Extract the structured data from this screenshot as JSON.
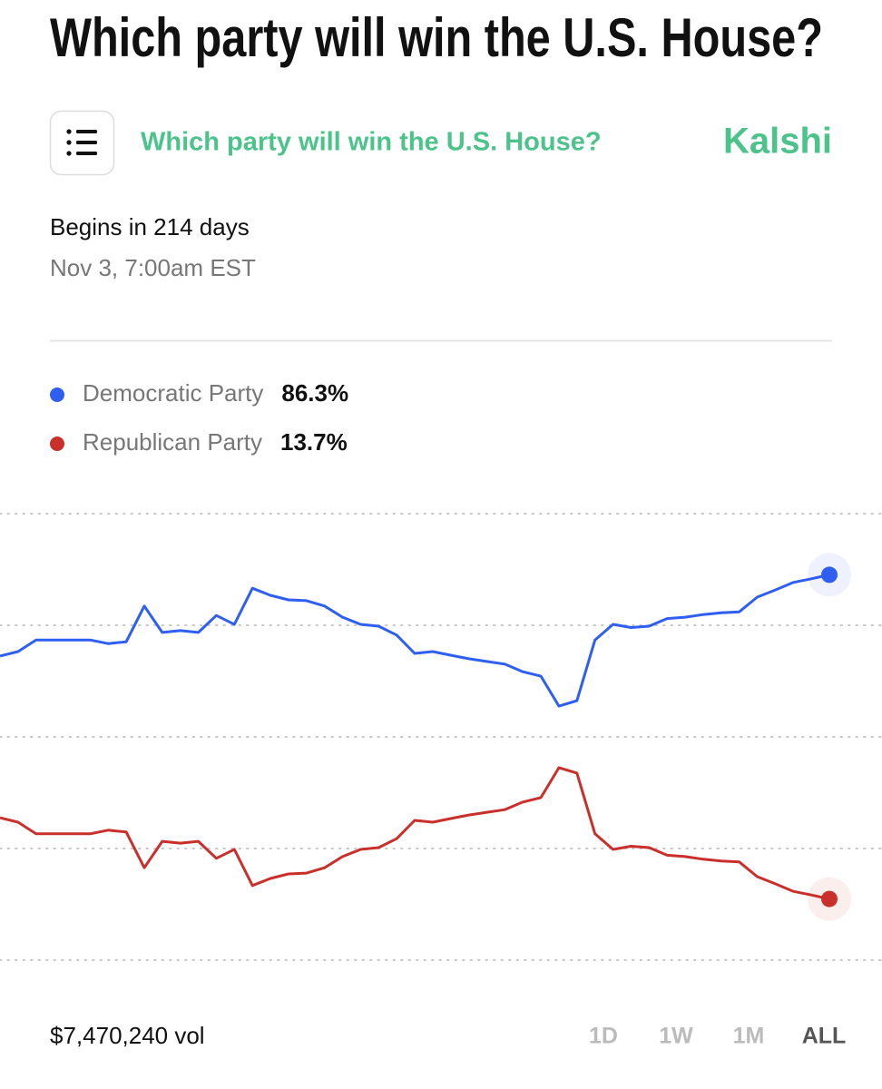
{
  "page": {
    "title": "Which party will win the U.S. House?",
    "market_title": "Which party will win the U.S. House?",
    "brand": "Kalshi",
    "begins": "Begins in 214 days",
    "date": "Nov 3, 7:00am EST",
    "volume": "$7,470,240 vol",
    "ranges": [
      "1D",
      "1W",
      "1M",
      "ALL"
    ],
    "selected_range": "ALL"
  },
  "chart_data": {
    "type": "line",
    "ylim": [
      0,
      100
    ],
    "yticks": [
      0,
      25,
      50,
      75,
      100
    ],
    "grid": true,
    "series": [
      {
        "name": "Democratic Party",
        "color": "#2f5ff0",
        "label": "86.3%",
        "values": [
          68.1,
          69.1,
          71.7,
          71.7,
          71.7,
          71.7,
          70.9,
          71.3,
          79.3,
          73.4,
          73.8,
          73.4,
          77.2,
          75.2,
          83.3,
          81.7,
          80.7,
          80.5,
          79.3,
          76.8,
          75.2,
          74.8,
          72.8,
          68.7,
          69.1,
          68.3,
          67.5,
          66.9,
          66.3,
          64.6,
          63.6,
          56.9,
          58.1,
          71.7,
          75.2,
          74.5,
          74.8,
          76.5,
          76.8,
          77.4,
          77.8,
          78.0,
          81.3,
          82.9,
          84.6,
          85.4,
          86.3
        ]
      },
      {
        "name": "Republican Party",
        "color": "#c9302c",
        "label": "13.7%",
        "values": [
          31.9,
          30.9,
          28.3,
          28.3,
          28.3,
          28.3,
          29.1,
          28.7,
          20.7,
          26.6,
          26.2,
          26.6,
          22.8,
          24.8,
          16.7,
          18.3,
          19.3,
          19.5,
          20.7,
          23.2,
          24.8,
          25.2,
          27.2,
          31.3,
          30.9,
          31.7,
          32.5,
          33.1,
          33.7,
          35.4,
          36.4,
          43.1,
          41.9,
          28.3,
          24.8,
          25.5,
          25.2,
          23.5,
          23.2,
          22.6,
          22.2,
          22.0,
          18.7,
          17.1,
          15.4,
          14.6,
          13.7
        ]
      }
    ]
  }
}
